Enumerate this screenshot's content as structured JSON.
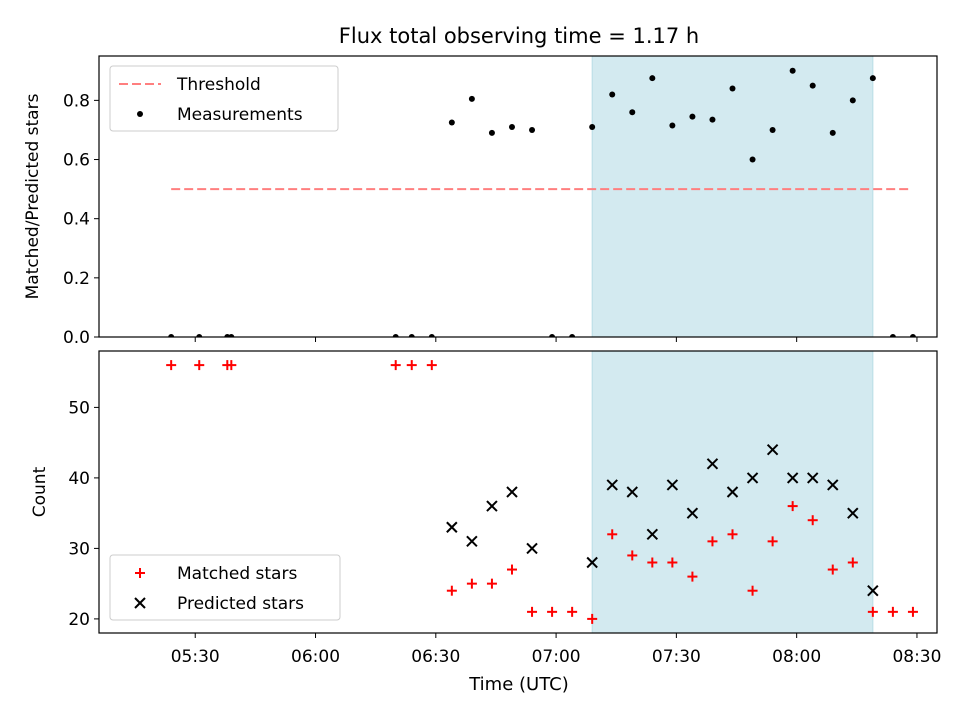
{
  "figure": {
    "title": "Flux total observing time = 1.17 h",
    "xlabel": "Time (UTC)"
  },
  "chart_data": [
    {
      "type": "scatter",
      "title": "Flux total observing time = 1.17 h",
      "xlabel": "",
      "ylabel": "Matched/Predicted stars",
      "ylim": [
        0,
        0.95
      ],
      "yticks": [
        "0.0",
        "0.2",
        "0.4",
        "0.6",
        "0.8"
      ],
      "xticks": [
        "05:30",
        "06:00",
        "06:30",
        "07:00",
        "07:30",
        "08:00",
        "08:30"
      ],
      "xlim": [
        "05:06",
        "08:35"
      ],
      "legend_position": "upper left",
      "grid": false,
      "highlight_span": {
        "x": [
          "07:09",
          "08:19"
        ],
        "color": "#d3eaf0"
      },
      "series": [
        {
          "name": "Threshold",
          "kind": "line",
          "style": "dashed",
          "color": "#ff7f7f",
          "x": [
            "05:24",
            "08:28"
          ],
          "y": [
            0.5,
            0.5
          ]
        },
        {
          "name": "Measurements",
          "kind": "scatter",
          "marker": "dot",
          "color": "#000000",
          "x": [
            "05:24",
            "05:31",
            "05:38",
            "05:39",
            "06:20",
            "06:24",
            "06:29",
            "06:34",
            "06:39",
            "06:44",
            "06:49",
            "06:54",
            "06:59",
            "07:04",
            "07:09",
            "07:14",
            "07:19",
            "07:24",
            "07:29",
            "07:34",
            "07:39",
            "07:44",
            "07:49",
            "07:54",
            "07:59",
            "08:04",
            "08:09",
            "08:14",
            "08:19",
            "08:24",
            "08:29"
          ],
          "y": [
            0,
            0,
            0,
            0,
            0,
            0,
            0,
            0.725,
            0.805,
            0.69,
            0.71,
            0.7,
            0,
            0,
            0.71,
            0.82,
            0.76,
            0.875,
            0.715,
            0.745,
            0.735,
            0.84,
            0.6,
            0.7,
            0.9,
            0.85,
            0.69,
            0.8,
            0.875,
            0,
            0
          ]
        }
      ]
    },
    {
      "type": "scatter",
      "title": "",
      "xlabel": "Time (UTC)",
      "ylabel": "Count",
      "ylim": [
        18,
        58
      ],
      "yticks": [
        "20",
        "30",
        "40",
        "50"
      ],
      "xticks": [
        "05:30",
        "06:00",
        "06:30",
        "07:00",
        "07:30",
        "08:00",
        "08:30"
      ],
      "xlim": [
        "05:06",
        "08:35"
      ],
      "legend_position": "lower left",
      "grid": false,
      "highlight_span": {
        "x": [
          "07:09",
          "08:19"
        ],
        "color": "#d3eaf0"
      },
      "series": [
        {
          "name": "Matched stars",
          "kind": "scatter",
          "marker": "plus",
          "color": "#ff0000",
          "x": [
            "05:24",
            "05:31",
            "05:38",
            "05:39",
            "06:20",
            "06:24",
            "06:29",
            "06:34",
            "06:39",
            "06:44",
            "06:49",
            "06:54",
            "06:59",
            "07:04",
            "07:09",
            "07:14",
            "07:19",
            "07:24",
            "07:29",
            "07:34",
            "07:39",
            "07:44",
            "07:49",
            "07:54",
            "07:59",
            "08:04",
            "08:09",
            "08:14",
            "08:19",
            "08:24",
            "08:29"
          ],
          "y": [
            56,
            56,
            56,
            56,
            56,
            56,
            56,
            24,
            25,
            25,
            27,
            21,
            21,
            21,
            20,
            32,
            29,
            28,
            28,
            26,
            31,
            32,
            24,
            31,
            36,
            34,
            27,
            28,
            21,
            21,
            21
          ]
        },
        {
          "name": "Predicted stars",
          "kind": "scatter",
          "marker": "x",
          "color": "#000000",
          "x": [
            "06:34",
            "06:39",
            "06:44",
            "06:49",
            "06:54",
            "07:09",
            "07:14",
            "07:19",
            "07:24",
            "07:29",
            "07:34",
            "07:39",
            "07:44",
            "07:49",
            "07:54",
            "07:59",
            "08:04",
            "08:09",
            "08:14",
            "08:19"
          ],
          "y": [
            33,
            31,
            36,
            38,
            30,
            28,
            39,
            38,
            32,
            39,
            35,
            42,
            38,
            40,
            44,
            40,
            40,
            39,
            35,
            24
          ]
        }
      ]
    }
  ]
}
